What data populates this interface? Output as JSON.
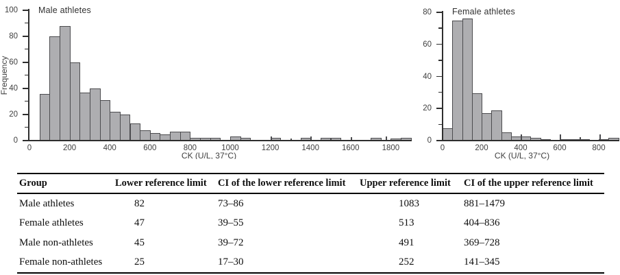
{
  "chart_data": [
    {
      "id": "male",
      "type": "histogram",
      "title": "Male athletes",
      "xlabel": "CK (U/L, 37°C)",
      "ylabel": "Frequency",
      "xlim": [
        0,
        1900
      ],
      "ylim": [
        0,
        100
      ],
      "xticks": [
        0,
        200,
        400,
        600,
        800,
        1000,
        1200,
        1400,
        1600,
        1800
      ],
      "yticks_major": [
        0,
        20,
        40,
        60,
        80,
        100
      ],
      "yticks_minor": [
        10,
        30,
        50,
        70,
        90
      ],
      "bin_start": 50,
      "bin_width": 50,
      "frequencies": [
        36,
        80,
        88,
        60,
        37,
        40,
        31,
        22,
        20,
        13,
        8,
        6,
        5,
        7,
        7,
        2,
        2,
        2,
        0,
        3,
        2,
        0,
        0,
        2,
        0,
        0,
        2,
        0,
        2,
        2,
        0,
        0,
        0,
        2,
        0,
        1.5,
        2
      ],
      "singletons": [
        {
          "x": 1200,
          "h": 3
        },
        {
          "x": 1300,
          "h": 1.5
        },
        {
          "x": 1400,
          "h": 3
        },
        {
          "x": 1600,
          "h": 2.5
        },
        {
          "x": 1775,
          "h": 3
        }
      ]
    },
    {
      "id": "female",
      "type": "histogram",
      "title": "Female athletes",
      "xlabel": "CK (U/L, 37°C)",
      "ylabel": "",
      "xlim": [
        0,
        900
      ],
      "ylim": [
        0,
        80
      ],
      "xticks": [
        0,
        200,
        400,
        600,
        800
      ],
      "yticks_major": [
        0,
        20,
        40,
        60,
        80
      ],
      "yticks_minor": [
        10,
        30,
        50,
        70
      ],
      "bin_start": 0,
      "bin_width": 50,
      "frequencies": [
        7.5,
        75,
        76,
        29.5,
        17,
        19,
        5,
        2.5,
        2.5,
        1.5,
        1,
        0,
        1,
        1,
        1,
        0,
        1,
        1.5
      ],
      "singletons": [
        {
          "x": 400,
          "h": 4
        },
        {
          "x": 600,
          "h": 4
        },
        {
          "x": 700,
          "h": 2
        },
        {
          "x": 805,
          "h": 4
        }
      ]
    }
  ],
  "table": {
    "headers": [
      "Group",
      "Lower reference limit",
      "CI of the lower reference limit",
      "Upper reference limit",
      "CI of the upper reference limit"
    ],
    "rows": [
      [
        "Male athletes",
        "82",
        "73–86",
        "1083",
        "881–1479"
      ],
      [
        "Female athletes",
        "47",
        "39–55",
        "513",
        "404–836"
      ],
      [
        "Male non-athletes",
        "45",
        "39–72",
        "491",
        "369–728"
      ],
      [
        "Female non-athletes",
        "25",
        "17–30",
        "252",
        "141–345"
      ]
    ]
  },
  "colors": {
    "bar_fill": "#aeaeb1",
    "bar_border": "#4b4b4e",
    "axis": "#2e2e2e",
    "chart_text": "#3f3f3f",
    "table_text": "#0e0e0e",
    "rule": "#000000"
  }
}
